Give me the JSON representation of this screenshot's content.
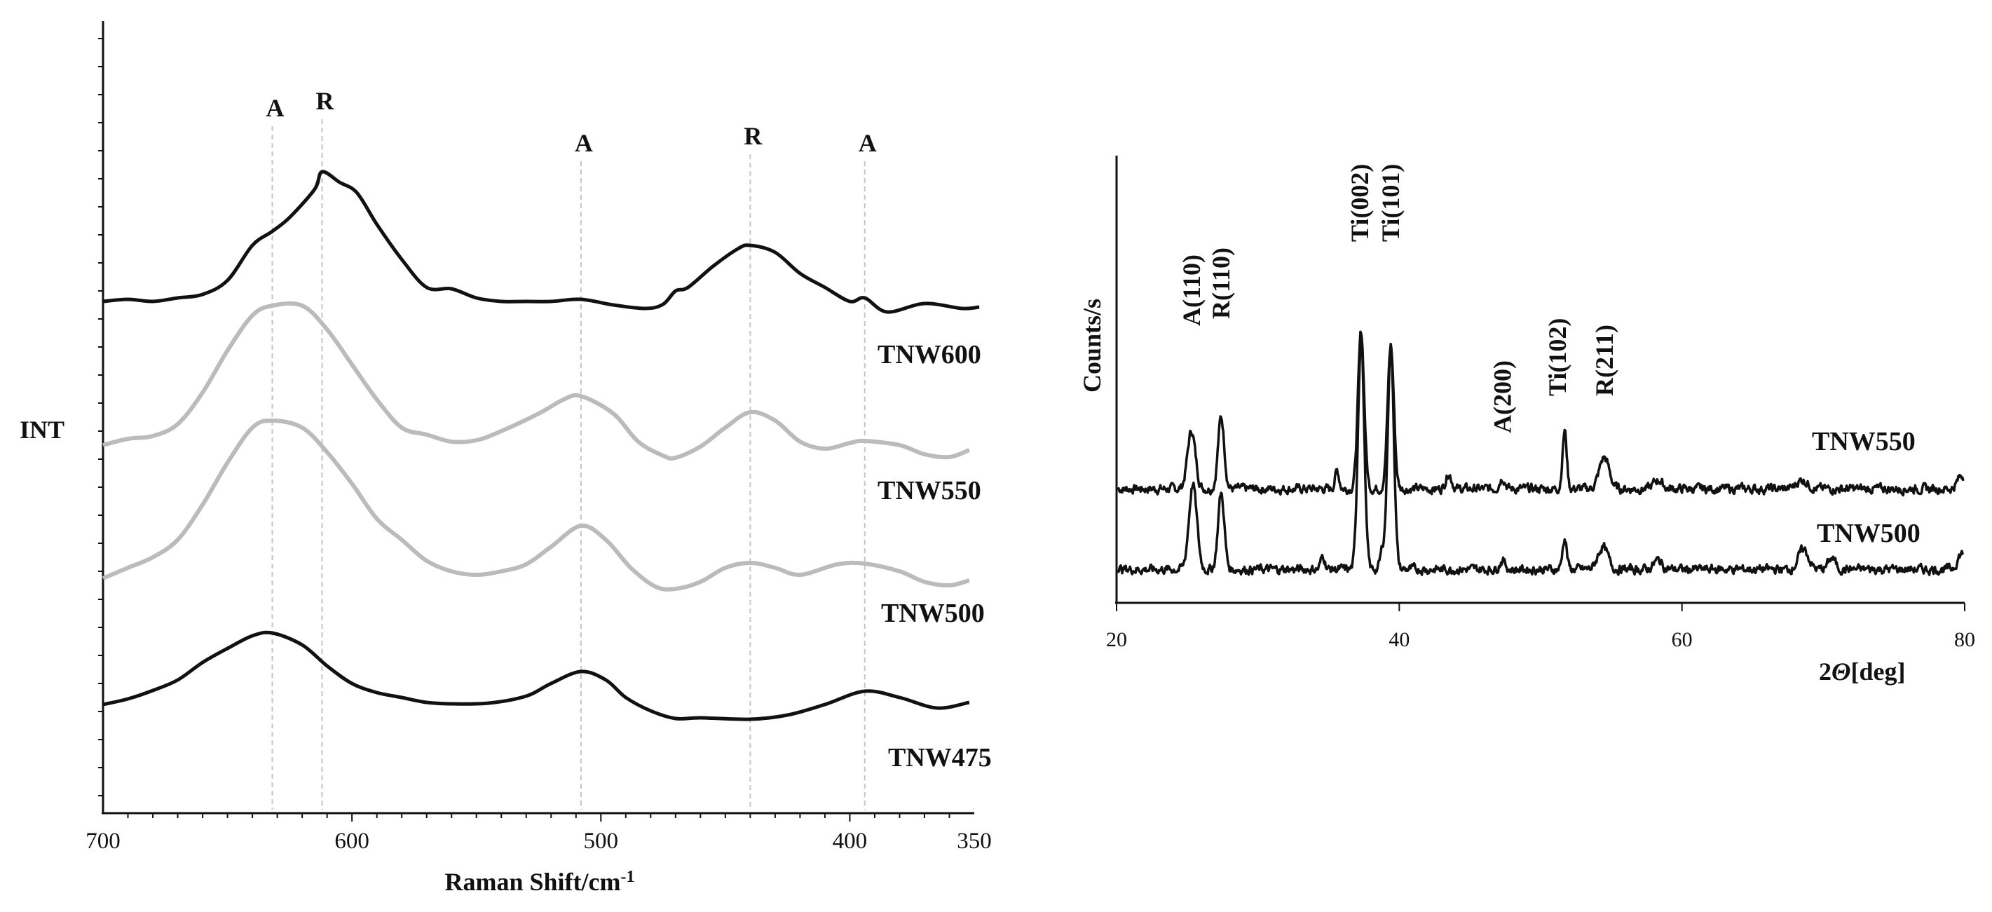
{
  "chart_data": [
    {
      "type": "line",
      "title": "",
      "xlabel": "Raman Shift/cm",
      "xlabel_sup": "-1",
      "ylabel": "INT",
      "xlim": [
        700,
        350
      ],
      "ylim": [
        0,
        100
      ],
      "xticks": [
        700,
        600,
        500,
        400,
        350
      ],
      "x_reversed": true,
      "grid": false,
      "peak_markers": [
        {
          "label": "A",
          "x": 632,
          "y_level": 100
        },
        {
          "label": "R",
          "x": 612,
          "y_level": 101
        },
        {
          "label": "A",
          "x": 508,
          "y_level": 95
        },
        {
          "label": "R",
          "x": 440,
          "y_level": 96
        },
        {
          "label": "A",
          "x": 394,
          "y_level": 95
        }
      ],
      "series": [
        {
          "name": "TNW600",
          "color": "#111111",
          "points": [
            [
              700,
              73
            ],
            [
              690,
              73.3
            ],
            [
              680,
              73
            ],
            [
              670,
              73.5
            ],
            [
              660,
              74
            ],
            [
              650,
              76
            ],
            [
              640,
              81
            ],
            [
              632,
              83
            ],
            [
              625,
              85
            ],
            [
              615,
              89
            ],
            [
              612,
              91.5
            ],
            [
              605,
              90
            ],
            [
              598,
              88.5
            ],
            [
              590,
              84
            ],
            [
              580,
              79
            ],
            [
              570,
              75
            ],
            [
              560,
              74.8
            ],
            [
              550,
              73.5
            ],
            [
              540,
              73
            ],
            [
              530,
              73
            ],
            [
              520,
              73
            ],
            [
              508,
              73.3
            ],
            [
              495,
              72.5
            ],
            [
              482,
              72
            ],
            [
              475,
              72.6
            ],
            [
              470,
              74.5
            ],
            [
              465,
              75
            ],
            [
              455,
              78
            ],
            [
              445,
              80.5
            ],
            [
              440,
              81
            ],
            [
              430,
              80
            ],
            [
              420,
              77
            ],
            [
              410,
              75
            ],
            [
              400,
              73
            ],
            [
              394,
              73.5
            ],
            [
              385,
              71.5
            ],
            [
              370,
              72.7
            ],
            [
              355,
              72
            ],
            [
              348,
              72.2
            ]
          ]
        },
        {
          "name": "TNW550",
          "color": "#bbbbbb",
          "points": [
            [
              700,
              52.5
            ],
            [
              690,
              53.4
            ],
            [
              680,
              53.8
            ],
            [
              670,
              55.5
            ],
            [
              660,
              60
            ],
            [
              650,
              66
            ],
            [
              640,
              71
            ],
            [
              632,
              72.4
            ],
            [
              620,
              72.4
            ],
            [
              610,
              69
            ],
            [
              600,
              64
            ],
            [
              590,
              59
            ],
            [
              580,
              55
            ],
            [
              570,
              54
            ],
            [
              560,
              53
            ],
            [
              550,
              53.2
            ],
            [
              540,
              54.5
            ],
            [
              525,
              57
            ],
            [
              515,
              59
            ],
            [
              508,
              59.5
            ],
            [
              495,
              57
            ],
            [
              485,
              53
            ],
            [
              475,
              51
            ],
            [
              470,
              50.7
            ],
            [
              460,
              52.3
            ],
            [
              450,
              55
            ],
            [
              440,
              57.2
            ],
            [
              430,
              56
            ],
            [
              420,
              53
            ],
            [
              410,
              52
            ],
            [
              400,
              52.8
            ],
            [
              394,
              53.1
            ],
            [
              380,
              52.5
            ],
            [
              370,
              51.2
            ],
            [
              360,
              50.8
            ],
            [
              352,
              51.8
            ]
          ]
        },
        {
          "name": "TNW500",
          "color": "#bbbbbb",
          "points": [
            [
              700,
              33.5
            ],
            [
              690,
              35
            ],
            [
              680,
              36.5
            ],
            [
              670,
              39
            ],
            [
              660,
              44
            ],
            [
              650,
              50
            ],
            [
              640,
              55
            ],
            [
              632,
              56
            ],
            [
              620,
              55
            ],
            [
              610,
              51.5
            ],
            [
              600,
              47
            ],
            [
              590,
              42
            ],
            [
              580,
              39
            ],
            [
              570,
              36
            ],
            [
              560,
              34.5
            ],
            [
              550,
              34
            ],
            [
              540,
              34.5
            ],
            [
              530,
              35.5
            ],
            [
              520,
              38
            ],
            [
              508,
              41
            ],
            [
              498,
              39
            ],
            [
              488,
              35
            ],
            [
              478,
              32.3
            ],
            [
              470,
              32
            ],
            [
              460,
              33
            ],
            [
              450,
              35
            ],
            [
              440,
              35.7
            ],
            [
              430,
              35
            ],
            [
              420,
              34
            ],
            [
              405,
              35.5
            ],
            [
              394,
              35.6
            ],
            [
              380,
              34.5
            ],
            [
              370,
              33
            ],
            [
              360,
              32.5
            ],
            [
              352,
              33.2
            ]
          ]
        },
        {
          "name": "TNW475",
          "color": "#111111",
          "points": [
            [
              700,
              15.5
            ],
            [
              690,
              16.3
            ],
            [
              680,
              17.5
            ],
            [
              670,
              19
            ],
            [
              660,
              21.5
            ],
            [
              650,
              23.5
            ],
            [
              640,
              25.3
            ],
            [
              632,
              25.7
            ],
            [
              620,
              24
            ],
            [
              610,
              21
            ],
            [
              600,
              18.5
            ],
            [
              590,
              17.2
            ],
            [
              580,
              16.5
            ],
            [
              570,
              15.8
            ],
            [
              560,
              15.6
            ],
            [
              545,
              15.7
            ],
            [
              530,
              16.7
            ],
            [
              520,
              18.5
            ],
            [
              508,
              20.2
            ],
            [
              498,
              19
            ],
            [
              490,
              16.5
            ],
            [
              480,
              14.6
            ],
            [
              470,
              13.5
            ],
            [
              460,
              13.6
            ],
            [
              440,
              13.4
            ],
            [
              425,
              14
            ],
            [
              410,
              15.5
            ],
            [
              394,
              17.4
            ],
            [
              380,
              16.5
            ],
            [
              365,
              15
            ],
            [
              352,
              15.8
            ]
          ]
        }
      ],
      "series_labels": [
        "TNW600",
        "TNW550",
        "TNW500",
        "TNW475"
      ]
    },
    {
      "type": "line",
      "title": "",
      "xlabel": "2Θ[deg]",
      "xlabel_prefix": "2",
      "xlabel_theta": "Θ",
      "xlabel_suffix": "[deg]",
      "ylabel": "Counts/s",
      "xlim": [
        20,
        80
      ],
      "ylim": [
        0,
        100
      ],
      "xticks": [
        20,
        40,
        60,
        80
      ],
      "grid": false,
      "peak_labels": [
        "A(110)",
        "R(110)",
        "Ti(002)",
        "Ti(101)",
        "A(200)",
        "Ti(102)",
        "R(211)"
      ],
      "peak_label_positions": [
        25.3,
        27.4,
        37.2,
        39.4,
        47.3,
        51.2,
        54.5
      ],
      "series": [
        {
          "name": "TNW550",
          "color": "#111111",
          "baseline": 25.5,
          "peaks": [
            [
              25.3,
              13,
              0.28
            ],
            [
              27.4,
              16,
              0.22
            ],
            [
              35.6,
              4,
              0.15
            ],
            [
              37.3,
              35,
              0.22
            ],
            [
              39.4,
              32,
              0.22
            ],
            [
              43.5,
              3.5,
              0.2
            ],
            [
              47.3,
              2.5,
              0.2
            ],
            [
              51.7,
              13,
              0.15
            ],
            [
              54.5,
              7,
              0.35
            ],
            [
              58.3,
              2,
              0.3
            ],
            [
              68.5,
              2,
              0.4
            ],
            [
              79.8,
              3,
              0.3
            ]
          ]
        },
        {
          "name": "TNW500",
          "color": "#111111",
          "baseline": 7.5,
          "peaks": [
            [
              25.4,
              19,
              0.28
            ],
            [
              27.4,
              17,
              0.22
            ],
            [
              34.6,
              3,
              0.15
            ],
            [
              37.3,
              52,
              0.22
            ],
            [
              39.4,
              50,
              0.22
            ],
            [
              38.8,
              4,
              0.15
            ],
            [
              47.3,
              2,
              0.2
            ],
            [
              51.7,
              7,
              0.15
            ],
            [
              54.4,
              5,
              0.35
            ],
            [
              58.3,
              2,
              0.3
            ],
            [
              68.6,
              4.5,
              0.35
            ],
            [
              70.6,
              2.5,
              0.25
            ],
            [
              79.8,
              3.5,
              0.3
            ]
          ]
        }
      ],
      "series_labels": [
        "TNW550",
        "TNW500"
      ]
    }
  ]
}
